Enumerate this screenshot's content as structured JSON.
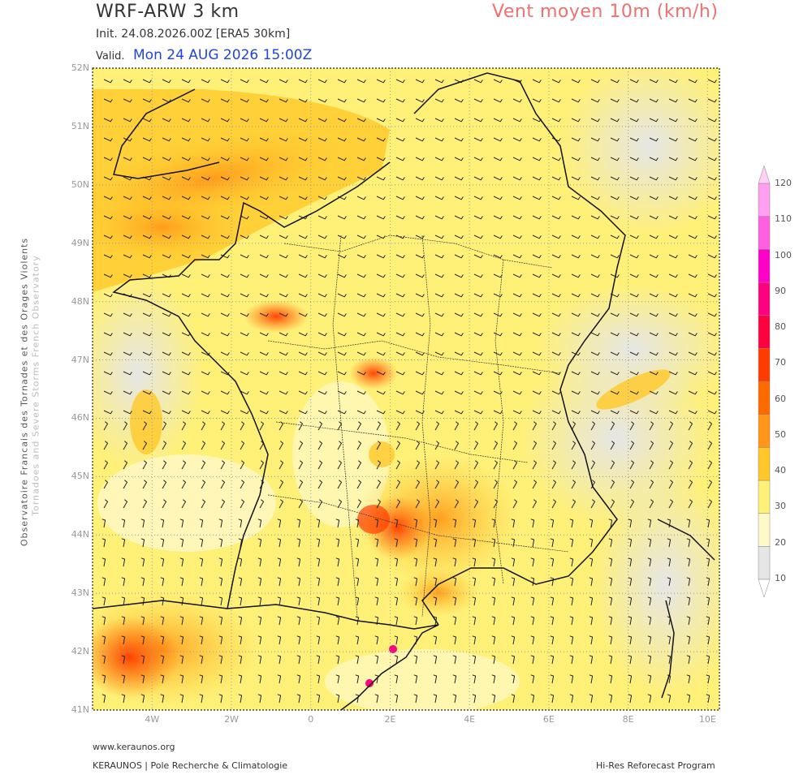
{
  "header": {
    "title": "WRF-ARW 3 km",
    "subtitle": "Vent moyen 10m (km/h)",
    "init": "Init.   24.08.2026.00Z [ERA5 30km]",
    "valid_label": "Valid.",
    "valid_time": "Mon 24 AUG 2026 15:00Z"
  },
  "side_text": {
    "line1": "Observatoire Francais des Tornades et des Orages Violents",
    "line2": "Tornadoes and Severe Storms French Observatory"
  },
  "map": {
    "lat_labels": [
      "52N",
      "51N",
      "50N",
      "49N",
      "48N",
      "47N",
      "46N",
      "45N",
      "44N",
      "43N",
      "42N",
      "41N"
    ],
    "lon_labels": [
      "4W",
      "2W",
      "0",
      "2E",
      "4E",
      "6E",
      "8E",
      "10E"
    ],
    "lat_range": [
      41,
      52
    ],
    "lon_range": [
      -5.5,
      10.3
    ],
    "grid": "dotted",
    "overlay": "wind barbs"
  },
  "colorbar": {
    "labels": [
      "120",
      "110",
      "100",
      "90",
      "80",
      "70",
      "60",
      "50",
      "40",
      "30",
      "20",
      "10"
    ],
    "colors": [
      "#e6e6e6",
      "#fff8c8",
      "#fff078",
      "#ffc828",
      "#ff9618",
      "#ff6a00",
      "#ff3c00",
      "#ff0040",
      "#ff0080",
      "#ff00c8",
      "#ff60e0",
      "#ffa0f0"
    ]
  },
  "footer": {
    "url": "www.keraunos.org",
    "left": "KERAUNOS | Pole Recherche & Climatologie",
    "right": "Hi-Res Reforecast Program"
  }
}
